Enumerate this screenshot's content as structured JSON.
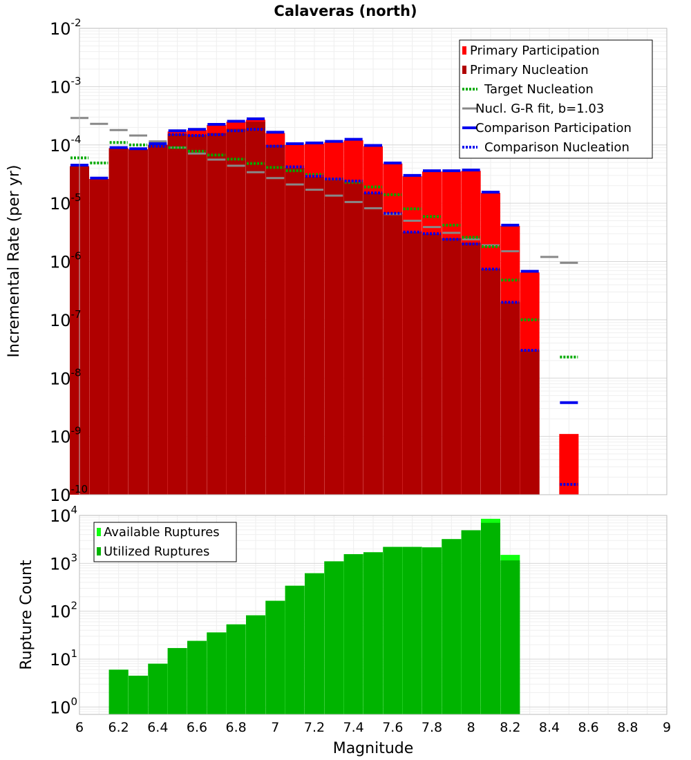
{
  "chart_data": [
    {
      "type": "bar",
      "title": "Calaveras (north)",
      "xlabel": "",
      "ylabel": "Incremental Rate (per yr)",
      "xlim": [
        6,
        9
      ],
      "ylim": [
        1e-10,
        0.01
      ],
      "yscale": "log",
      "grid": true,
      "legend_position": "top-right",
      "x": [
        6.0,
        6.1,
        6.2,
        6.3,
        6.4,
        6.5,
        6.6,
        6.7,
        6.8,
        6.9,
        7.0,
        7.1,
        7.2,
        7.3,
        7.4,
        7.5,
        7.6,
        7.7,
        7.8,
        7.9,
        8.0,
        8.1,
        8.2,
        8.3,
        8.4,
        8.5
      ],
      "legend": [
        "Primary Participation",
        "Primary Nucleation",
        "Target Nucleation",
        "Nucl. G-R fit, b=1.03",
        "Comparison Participation",
        "Comparison Nucleation"
      ],
      "series": [
        {
          "name": "Primary Participation",
          "style": "bar",
          "color": "#ff0000",
          "values": [
            4.3e-05,
            2.6e-05,
            8.8e-05,
            8.4e-05,
            0.0001,
            0.00017,
            0.00018,
            0.00022,
            0.00025,
            0.00027,
            0.00016,
            0.0001,
            0.000105,
            0.000112,
            0.00012,
            9.5e-05,
            4.8e-05,
            2.9e-05,
            3.5e-05,
            3.5e-05,
            3.6e-05,
            1.5e-05,
            4.1e-06,
            6.5e-07,
            null,
            1.1e-09
          ]
        },
        {
          "name": "Primary Nucleation",
          "style": "bar",
          "color": "#b00000",
          "values": [
            4.3e-05,
            2.6e-05,
            8.8e-05,
            8.4e-05,
            0.0001,
            0.000155,
            0.00015,
            0.00016,
            0.00019,
            0.00025,
            0.0001,
            4e-05,
            2.8e-05,
            2.5e-05,
            2.3e-05,
            1.5e-05,
            6.5e-06,
            3.2e-06,
            3e-06,
            2.5e-06,
            2.1e-06,
            7.5e-07,
            2e-07,
            3e-08,
            null,
            null
          ]
        },
        {
          "name": "Target Nucleation",
          "style": "dotted",
          "color": "#00aa00",
          "values": [
            6e-05,
            4.9e-05,
            0.00011,
            0.0001,
            0.0001,
            9e-05,
            7.8e-05,
            6.7e-05,
            5.7e-05,
            4.8e-05,
            4.1e-05,
            3.6e-05,
            3.1e-05,
            2.6e-05,
            2.3e-05,
            1.9e-05,
            1.4e-05,
            8e-06,
            5.9e-06,
            4.2e-06,
            2.6e-06,
            1.8e-06,
            4.8e-07,
            1e-07,
            null,
            2.3e-08
          ]
        },
        {
          "name": "Nucl. G-R fit, b=1.03",
          "style": "dash",
          "color": "#888888",
          "values": [
            0.00029,
            0.00023,
            0.00018,
            0.000145,
            0.000115,
            9e-05,
            7.1e-05,
            5.6e-05,
            4.4e-05,
            3.4e-05,
            2.7e-05,
            2.1e-05,
            1.7e-05,
            1.35e-05,
            1.05e-05,
            8.2e-06,
            6.5e-06,
            5e-06,
            3.9e-06,
            3.1e-06,
            2.4e-06,
            1.9e-06,
            1.5e-06,
            null,
            1.2e-06,
            9.5e-07
          ]
        },
        {
          "name": "Comparison Participation",
          "style": "solid",
          "color": "#0000ee",
          "values": [
            4.5e-05,
            2.7e-05,
            9e-05,
            8.6e-05,
            0.000105,
            0.000175,
            0.000185,
            0.000225,
            0.000255,
            0.00028,
            0.000165,
            0.000105,
            0.000108,
            0.000115,
            0.000125,
            9.8e-05,
            4.9e-05,
            3e-05,
            3.6e-05,
            3.6e-05,
            3.7e-05,
            1.55e-05,
            4.2e-06,
            6.8e-07,
            null,
            3.8e-09
          ]
        },
        {
          "name": "Comparison Nucleation",
          "style": "dotted",
          "color": "#0000ee",
          "values": [
            null,
            null,
            null,
            null,
            9.5e-05,
            0.00015,
            0.000145,
            0.00015,
            0.000175,
            0.000185,
            9.5e-05,
            4.2e-05,
            2.9e-05,
            2.6e-05,
            2.4e-05,
            1.5e-05,
            6.7e-06,
            3.2e-06,
            3e-06,
            2.4e-06,
            2e-06,
            7.4e-07,
            2e-07,
            3e-08,
            null,
            1.5e-10
          ]
        }
      ],
      "yticks": [
        {
          "base": "10",
          "exp": "-10"
        },
        {
          "base": "10",
          "exp": "-9"
        },
        {
          "base": "10",
          "exp": "-8"
        },
        {
          "base": "10",
          "exp": "-7"
        },
        {
          "base": "10",
          "exp": "-6"
        },
        {
          "base": "10",
          "exp": "-5"
        },
        {
          "base": "10",
          "exp": "-4"
        },
        {
          "base": "10",
          "exp": "-3"
        },
        {
          "base": "10",
          "exp": "-2"
        }
      ]
    },
    {
      "type": "bar",
      "title": "",
      "xlabel": "Magnitude",
      "ylabel": "Rupture Count",
      "xlim": [
        6,
        9
      ],
      "ylim": [
        0.7,
        10000
      ],
      "yscale": "log",
      "grid": true,
      "legend_position": "top-left",
      "x": [
        6.2,
        6.3,
        6.4,
        6.5,
        6.6,
        6.7,
        6.8,
        6.9,
        7.0,
        7.1,
        7.2,
        7.3,
        7.4,
        7.5,
        7.6,
        7.7,
        7.8,
        7.9,
        8.0,
        8.1,
        8.2
      ],
      "legend": [
        "Available Ruptures",
        "Utilized Ruptures"
      ],
      "series": [
        {
          "name": "Available Ruptures",
          "color": "#11ff11",
          "values": [
            6,
            4.5,
            8,
            17,
            24,
            36,
            53,
            82,
            165,
            340,
            620,
            1100,
            1550,
            1700,
            2200,
            2200,
            2150,
            3200,
            4900,
            8500,
            1500
          ]
        },
        {
          "name": "Utilized Ruptures",
          "color": "#00b400",
          "values": [
            6,
            4.5,
            8,
            17,
            24,
            36,
            53,
            82,
            165,
            340,
            620,
            1100,
            1550,
            1700,
            2200,
            2200,
            2150,
            3200,
            4900,
            7000,
            1150
          ]
        }
      ],
      "yticks": [
        {
          "base": "10",
          "exp": "0"
        },
        {
          "base": "10",
          "exp": "1"
        },
        {
          "base": "10",
          "exp": "2"
        },
        {
          "base": "10",
          "exp": "3"
        },
        {
          "base": "10",
          "exp": "4"
        }
      ],
      "xticks": [
        "6",
        "6.2",
        "6.4",
        "6.6",
        "6.8",
        "7",
        "7.2",
        "7.4",
        "7.6",
        "7.8",
        "8",
        "8.2",
        "8.4",
        "8.6",
        "8.8",
        "9"
      ]
    }
  ]
}
